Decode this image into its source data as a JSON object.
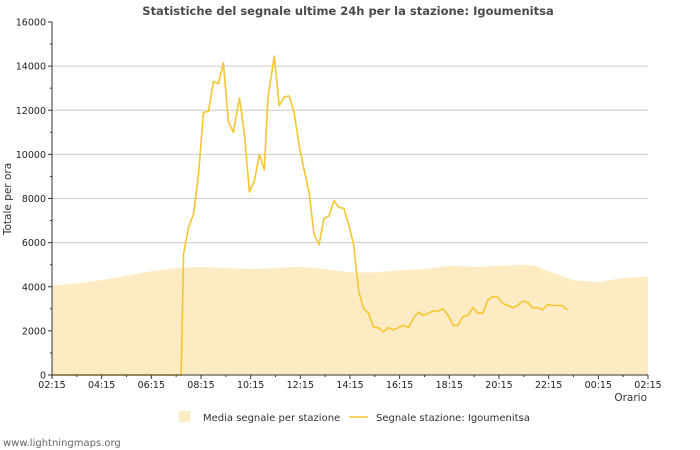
{
  "chart_data": {
    "type": "area+line",
    "title": "Statistiche del segnale ultime 24h per la stazione: Igoumenitsa",
    "xlabel": "Orario",
    "ylabel": "Totale per ora",
    "ylim": [
      0,
      16000
    ],
    "yticks": [
      0,
      2000,
      4000,
      6000,
      8000,
      10000,
      12000,
      14000,
      16000
    ],
    "xlim": [
      0,
      24
    ],
    "xticks": [
      {
        "x": 0,
        "label": "02:15"
      },
      {
        "x": 2,
        "label": "04:15"
      },
      {
        "x": 4,
        "label": "06:15"
      },
      {
        "x": 6,
        "label": "08:15"
      },
      {
        "x": 8,
        "label": "10:15"
      },
      {
        "x": 10,
        "label": "12:15"
      },
      {
        "x": 12,
        "label": "14:15"
      },
      {
        "x": 14,
        "label": "16:15"
      },
      {
        "x": 16,
        "label": "18:15"
      },
      {
        "x": 18,
        "label": "20:15"
      },
      {
        "x": 20,
        "label": "22:15"
      },
      {
        "x": 22,
        "label": "00:15"
      },
      {
        "x": 24,
        "label": "02:15"
      }
    ],
    "gridlines": [
      4000,
      6000,
      8000,
      10000,
      12000,
      14000
    ],
    "series": [
      {
        "name": "Media segnale per stazione",
        "kind": "area",
        "color": "#fdebc4",
        "points": [
          [
            0,
            4050
          ],
          [
            1,
            4150
          ],
          [
            2,
            4300
          ],
          [
            3,
            4500
          ],
          [
            4,
            4700
          ],
          [
            5,
            4850
          ],
          [
            6,
            4900
          ],
          [
            7,
            4850
          ],
          [
            8,
            4800
          ],
          [
            9,
            4850
          ],
          [
            10,
            4900
          ],
          [
            11,
            4800
          ],
          [
            12,
            4650
          ],
          [
            13,
            4650
          ],
          [
            14,
            4750
          ],
          [
            15,
            4800
          ],
          [
            16,
            4950
          ],
          [
            17,
            4900
          ],
          [
            18,
            4950
          ],
          [
            19,
            5000
          ],
          [
            19.5,
            4950
          ],
          [
            20,
            4700
          ],
          [
            21,
            4300
          ],
          [
            22,
            4200
          ],
          [
            23,
            4400
          ],
          [
            24,
            4450
          ]
        ]
      },
      {
        "name": "Segnale stazione: Igoumenitsa",
        "kind": "line",
        "color": "#f6c630",
        "points": [
          [
            0,
            0
          ],
          [
            1,
            0
          ],
          [
            2,
            0
          ],
          [
            3,
            0
          ],
          [
            4,
            0
          ],
          [
            4.8,
            0
          ],
          [
            5.2,
            0
          ],
          [
            5.3,
            5500
          ],
          [
            5.5,
            6700
          ],
          [
            5.7,
            7300
          ],
          [
            5.9,
            9100
          ],
          [
            6.1,
            11900
          ],
          [
            6.3,
            11950
          ],
          [
            6.5,
            13300
          ],
          [
            6.7,
            13200
          ],
          [
            6.9,
            14150
          ],
          [
            7.1,
            11500
          ],
          [
            7.3,
            11000
          ],
          [
            7.55,
            12550
          ],
          [
            7.75,
            10900
          ],
          [
            7.95,
            8300
          ],
          [
            8.15,
            8800
          ],
          [
            8.35,
            10000
          ],
          [
            8.55,
            9300
          ],
          [
            8.7,
            12600
          ],
          [
            8.95,
            14450
          ],
          [
            9.15,
            12200
          ],
          [
            9.35,
            12600
          ],
          [
            9.55,
            12650
          ],
          [
            9.75,
            11900
          ],
          [
            9.95,
            10400
          ],
          [
            10.15,
            9300
          ],
          [
            10.35,
            8300
          ],
          [
            10.55,
            6400
          ],
          [
            10.75,
            5900
          ],
          [
            10.95,
            7100
          ],
          [
            11.15,
            7200
          ],
          [
            11.35,
            7900
          ],
          [
            11.55,
            7600
          ],
          [
            11.75,
            7550
          ],
          [
            11.95,
            6800
          ],
          [
            12.15,
            5900
          ],
          [
            12.35,
            3800
          ],
          [
            12.55,
            3000
          ],
          [
            12.75,
            2800
          ],
          [
            12.95,
            2150
          ],
          [
            13.15,
            2150
          ],
          [
            13.35,
            1950
          ],
          [
            13.55,
            2150
          ],
          [
            13.75,
            2050
          ],
          [
            13.95,
            2150
          ],
          [
            14.15,
            2250
          ],
          [
            14.35,
            2150
          ],
          [
            14.55,
            2550
          ],
          [
            14.75,
            2850
          ],
          [
            14.95,
            2700
          ],
          [
            15.15,
            2800
          ],
          [
            15.35,
            2900
          ],
          [
            15.55,
            2900
          ],
          [
            15.75,
            3000
          ],
          [
            15.95,
            2700
          ],
          [
            16.15,
            2250
          ],
          [
            16.35,
            2250
          ],
          [
            16.55,
            2650
          ],
          [
            16.75,
            2700
          ],
          [
            16.95,
            3050
          ],
          [
            17.15,
            2800
          ],
          [
            17.35,
            2800
          ],
          [
            17.55,
            3400
          ],
          [
            17.75,
            3550
          ],
          [
            17.95,
            3550
          ],
          [
            18.15,
            3250
          ],
          [
            18.35,
            3150
          ],
          [
            18.55,
            3050
          ],
          [
            18.75,
            3150
          ],
          [
            18.95,
            3350
          ],
          [
            19.15,
            3300
          ],
          [
            19.35,
            3050
          ],
          [
            19.55,
            3050
          ],
          [
            19.75,
            2950
          ],
          [
            19.95,
            3200
          ],
          [
            20.15,
            3150
          ],
          [
            20.35,
            3150
          ],
          [
            20.55,
            3150
          ],
          [
            20.75,
            2950
          ]
        ]
      }
    ],
    "legend_placement": "bottom-center"
  },
  "footer": {
    "text": "www.lightningmaps.org"
  }
}
